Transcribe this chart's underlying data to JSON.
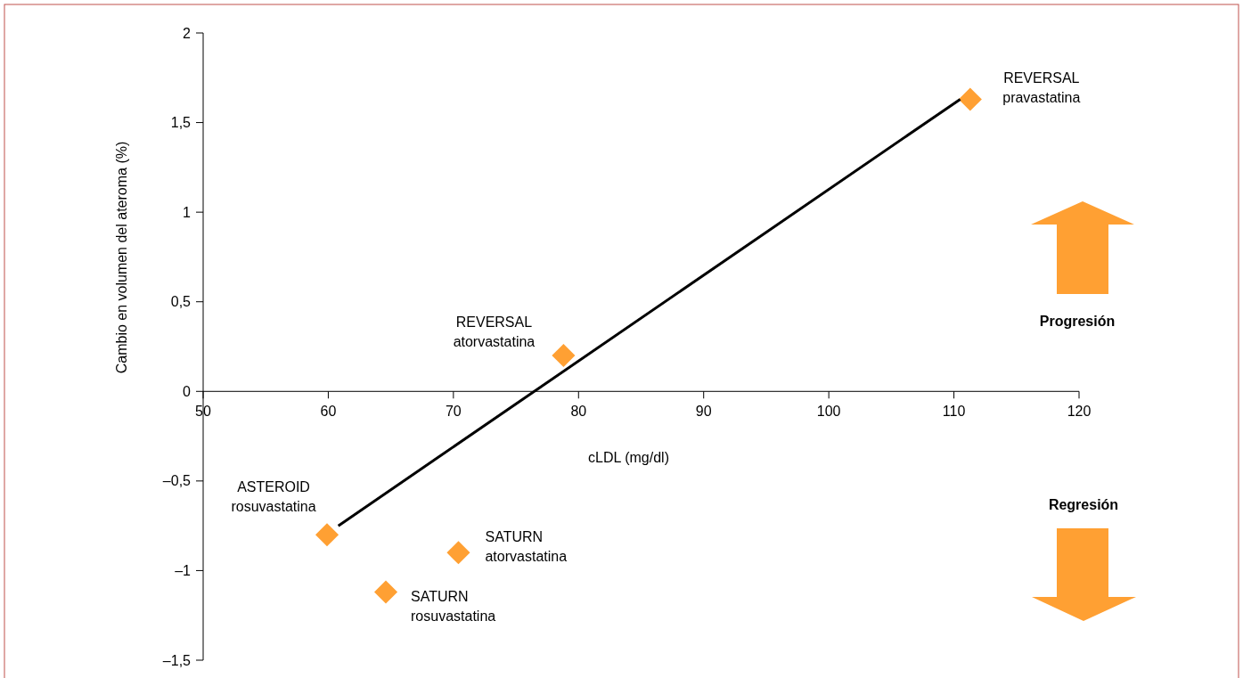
{
  "chart_data": {
    "type": "scatter",
    "xlabel": "cLDL (mg/dl)",
    "ylabel": "Cambio en volumen del ateroma (%)",
    "xlim": [
      50,
      120
    ],
    "xticks": [
      50,
      60,
      70,
      80,
      90,
      100,
      110,
      120
    ],
    "ylim": [
      -1.5,
      2
    ],
    "yticks": [
      {
        "value": -1.5,
        "label": "–1,5"
      },
      {
        "value": -1,
        "label": "–1"
      },
      {
        "value": -0.5,
        "label": "–0,5"
      },
      0,
      {
        "value": 0.5,
        "label": "0,5"
      },
      1,
      {
        "value": 1.5,
        "label": "1,5"
      },
      2
    ],
    "grid": false,
    "series": [
      {
        "color": "#ffa033",
        "marker": "diamond",
        "x": [
          111.3,
          78.8,
          59.9,
          70.4,
          64.6
        ],
        "values": [
          1.63,
          0.2,
          -0.8,
          -0.9,
          -1.12
        ]
      },
      {
        "type": "line",
        "color": "#000000",
        "x": [
          60.8,
          110.5
        ],
        "values": [
          -0.75,
          1.63
        ],
        "line_style": "solid"
      }
    ],
    "annotations": [
      {
        "text": "REVERSAL\npravastatina",
        "x": 111.3,
        "y": 1.63
      },
      {
        "text": "REVERSAL\natorvastatina",
        "x": 78.8,
        "y": 0.2
      },
      {
        "text": "ASTEROID\nrosuvastatina",
        "x": 59.9,
        "y": -0.8
      },
      {
        "text": "SATURN\natorvastatina",
        "x": 70.4,
        "y": -0.9
      },
      {
        "text": "SATURN\nrosuvastatina",
        "x": 64.6,
        "y": -1.12
      },
      "Progresión",
      "Regresión"
    ]
  }
}
